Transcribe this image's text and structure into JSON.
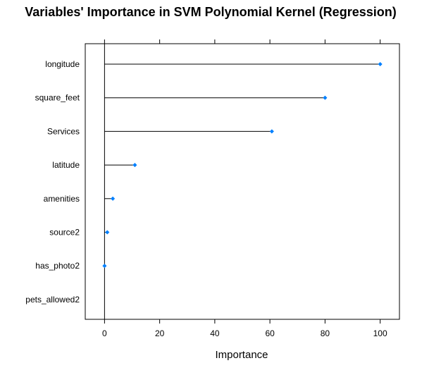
{
  "chart_data": {
    "type": "dot",
    "title": "Variables' Importance in SVM Polynomial Kernel (Regression)",
    "xlabel": "Importance",
    "ylabel": "",
    "xlim": [
      -7,
      107
    ],
    "xticks": [
      0,
      20,
      40,
      60,
      80,
      100
    ],
    "categories": [
      "longitude",
      "square_feet",
      "Services",
      "latitude",
      "amenities",
      "source2",
      "has_photo2",
      "pets_allowed2"
    ],
    "values": [
      100,
      80,
      60.7,
      11,
      3,
      1,
      0,
      0
    ],
    "marker_color": "#0080ff",
    "line_color": "#000000",
    "grid": false,
    "legend": "none"
  }
}
